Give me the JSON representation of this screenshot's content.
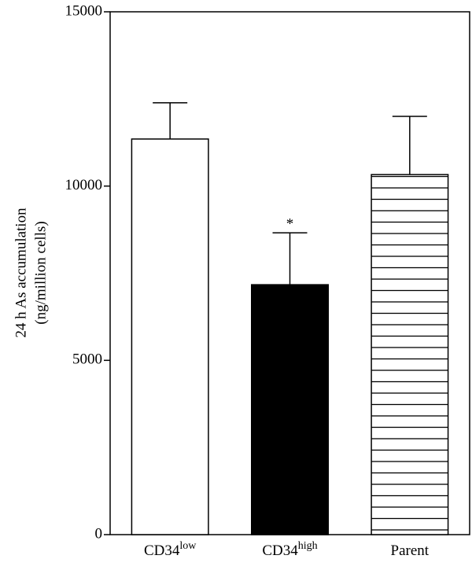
{
  "chart_data": {
    "type": "bar",
    "ylabel": [
      "24 h As accumulation",
      "(ng/million cells)"
    ],
    "categories": [
      [
        "CD34",
        "low"
      ],
      [
        "CD34",
        "high"
      ],
      [
        "Parent"
      ]
    ],
    "values": [
      11350,
      7170,
      10330
    ],
    "errors": [
      1040,
      1490,
      1670
    ],
    "significance": [
      null,
      "*",
      null
    ],
    "fills": [
      "#ffffff",
      "#000000",
      "#ffffff"
    ],
    "hatch": [
      null,
      null,
      "horizontal"
    ],
    "ylim": [
      0,
      15000
    ],
    "yticks": [
      0,
      5000,
      10000,
      15000
    ]
  }
}
